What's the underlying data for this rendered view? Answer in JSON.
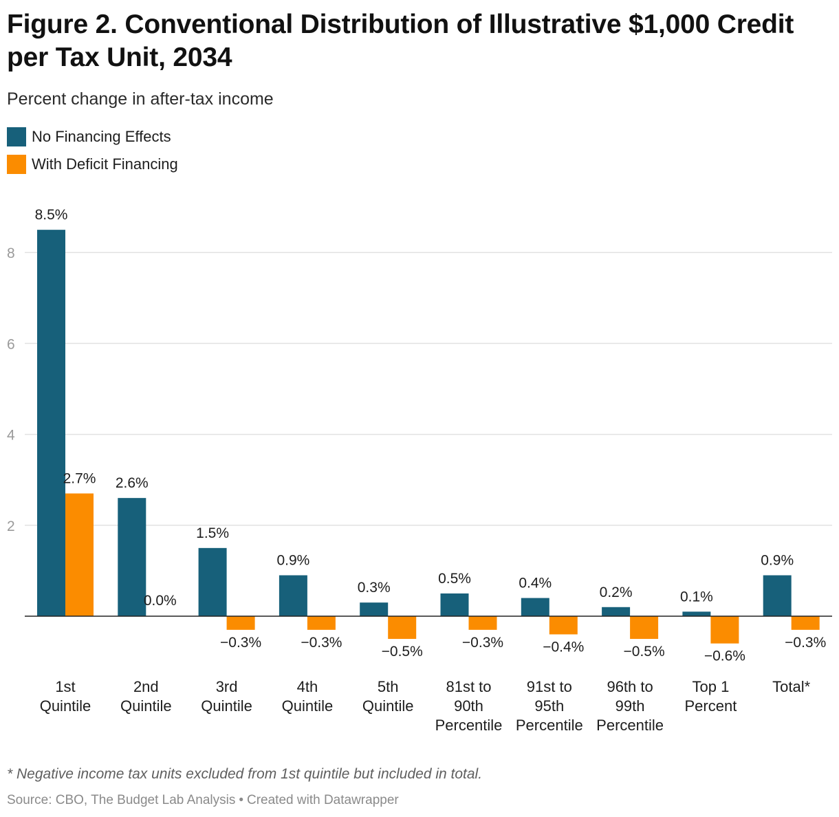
{
  "header": {
    "title": "Figure 2. Conventional Distribution of Illustrative $1,000 Credit per Tax Unit, 2034",
    "subtitle": "Percent change in after-tax income"
  },
  "legend": {
    "items": [
      {
        "label": "No Financing Effects",
        "color": "#17607a"
      },
      {
        "label": "With Deficit Financing",
        "color": "#fb8c00"
      }
    ]
  },
  "chart_data": {
    "type": "bar",
    "title": "Figure 2. Conventional Distribution of Illustrative $1,000 Credit per Tax Unit, 2034",
    "ylabel": "Percent change in after-tax income",
    "xlabel": "",
    "ylim": [
      -1,
      9
    ],
    "yticks": [
      2,
      4,
      6,
      8
    ],
    "grid": true,
    "legend_position": "top-left",
    "categories": [
      [
        "1st",
        "Quintile"
      ],
      [
        "2nd",
        "Quintile"
      ],
      [
        "3rd",
        "Quintile"
      ],
      [
        "4th",
        "Quintile"
      ],
      [
        "5th",
        "Quintile"
      ],
      [
        "81st to",
        "90th",
        "Percentile"
      ],
      [
        "91st to",
        "95th",
        "Percentile"
      ],
      [
        "96th to",
        "99th",
        "Percentile"
      ],
      [
        "Top 1",
        "Percent"
      ],
      [
        "Total*"
      ]
    ],
    "series": [
      {
        "name": "No Financing Effects",
        "color": "#17607a",
        "values": [
          8.5,
          2.6,
          1.5,
          0.9,
          0.3,
          0.5,
          0.4,
          0.2,
          0.1,
          0.9
        ],
        "labels": [
          "8.5%",
          "2.6%",
          "1.5%",
          "0.9%",
          "0.3%",
          "0.5%",
          "0.4%",
          "0.2%",
          "0.1%",
          "0.9%"
        ]
      },
      {
        "name": "With Deficit Financing",
        "color": "#fb8c00",
        "values": [
          2.7,
          0.0,
          -0.3,
          -0.3,
          -0.5,
          -0.3,
          -0.4,
          -0.5,
          -0.6,
          -0.3
        ],
        "labels": [
          "2.7%",
          "0.0%",
          "−0.3%",
          "−0.3%",
          "−0.5%",
          "−0.3%",
          "−0.4%",
          "−0.5%",
          "−0.6%",
          "−0.3%"
        ]
      }
    ]
  },
  "footer": {
    "note": "* Negative income tax units excluded from 1st quintile but included in total.",
    "source": "Source: CBO, The Budget Lab Analysis",
    "separator": "•",
    "credit": "Created with Datawrapper"
  }
}
